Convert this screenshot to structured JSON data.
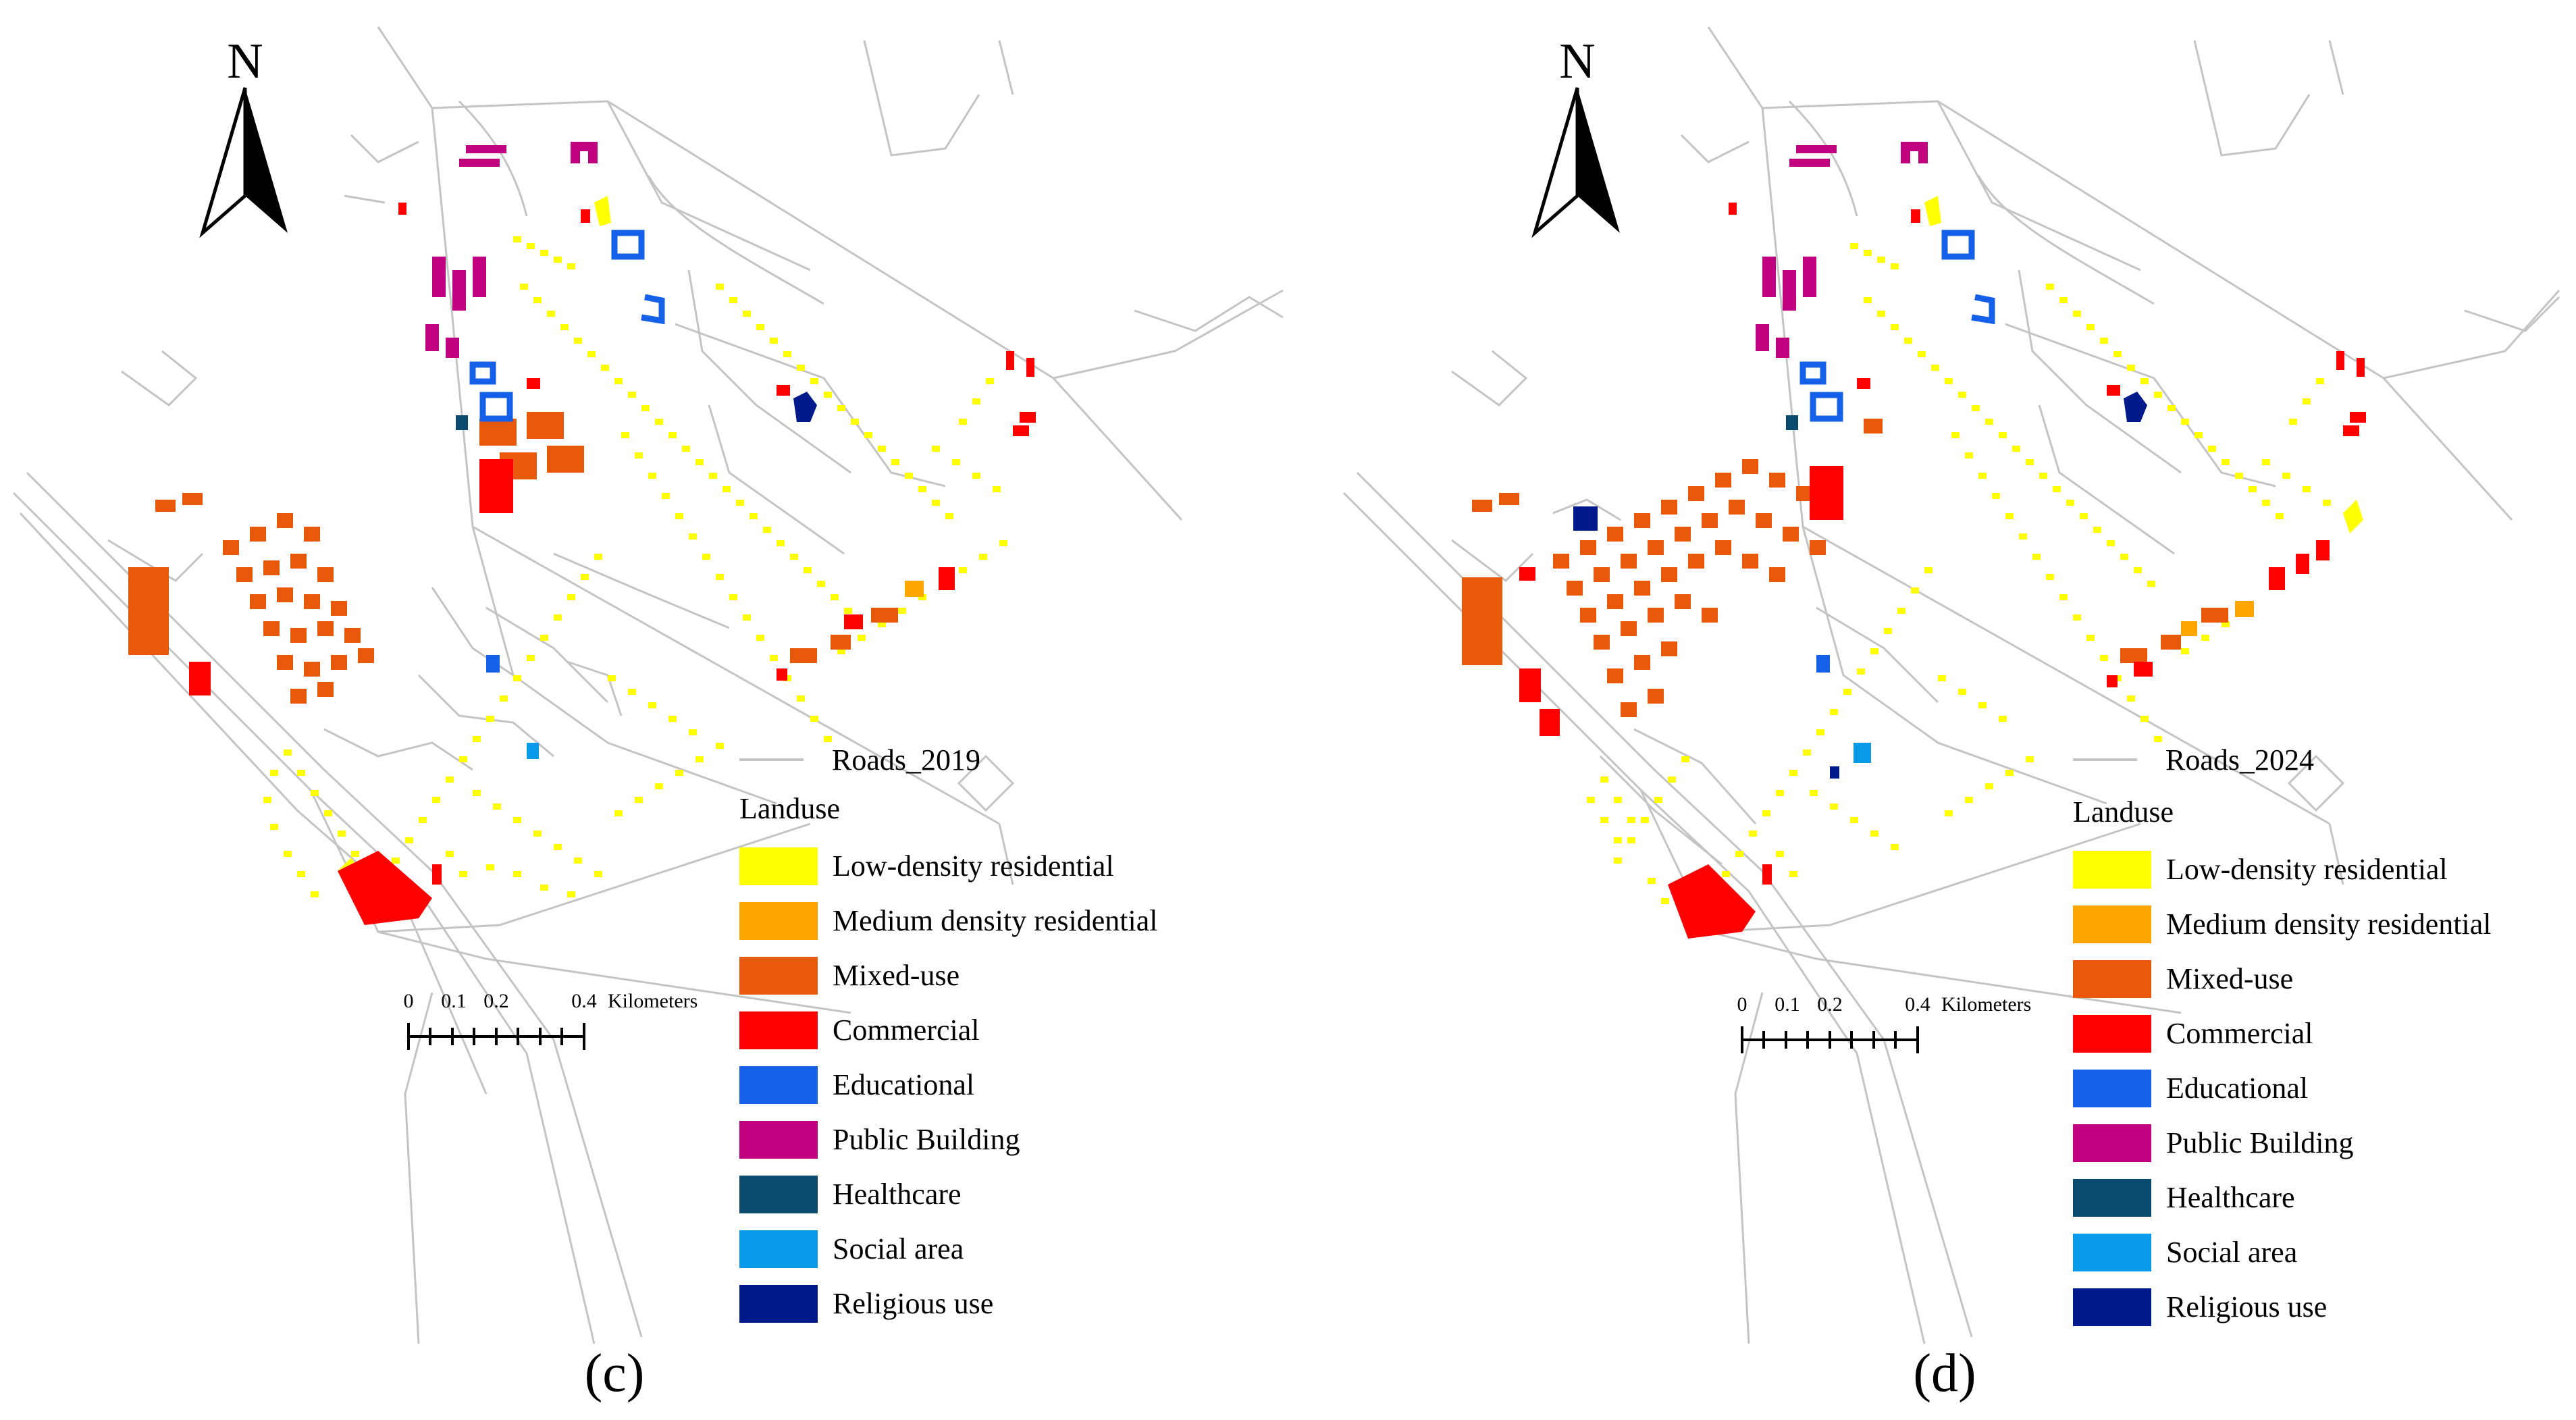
{
  "panels": [
    {
      "id": "c",
      "label": "(c)",
      "north": "N",
      "roads_legend": "Roads_2019",
      "scale": {
        "ticks": [
          "0",
          "0.1",
          "0.2",
          "0.4"
        ],
        "unit": "Kilometers"
      },
      "legend_title": "Landuse",
      "legend": [
        {
          "label": "Low-density residential",
          "color": "#ffff00"
        },
        {
          "label": "Medium density residential",
          "color": "#ffa500"
        },
        {
          "label": "Mixed-use",
          "color": "#e8590c"
        },
        {
          "label": "Commercial",
          "color": "#ff0000"
        },
        {
          "label": "Educational",
          "color": "#1560e8"
        },
        {
          "label": "Public Building",
          "color": "#c0007f"
        },
        {
          "label": "Healthcare",
          "color": "#0a4a6e"
        },
        {
          "label": "Social area",
          "color": "#0a9aea"
        },
        {
          "label": "Religious use",
          "color": "#001a8c"
        }
      ]
    },
    {
      "id": "d",
      "label": "(d)",
      "north": "N",
      "roads_legend": "Roads_2024",
      "scale": {
        "ticks": [
          "0",
          "0.1",
          "0.2",
          "0.4"
        ],
        "unit": "Kilometers"
      },
      "legend_title": "Landuse",
      "legend": [
        {
          "label": "Low-density residential",
          "color": "#ffff00"
        },
        {
          "label": "Medium density residential",
          "color": "#ffa500"
        },
        {
          "label": "Mixed-use",
          "color": "#e8590c"
        },
        {
          "label": "Commercial",
          "color": "#ff0000"
        },
        {
          "label": "Educational",
          "color": "#1560e8"
        },
        {
          "label": "Public Building",
          "color": "#c0007f"
        },
        {
          "label": "Healthcare",
          "color": "#0a4a6e"
        },
        {
          "label": "Social area",
          "color": "#0a9aea"
        },
        {
          "label": "Religious use",
          "color": "#001a8c"
        }
      ]
    }
  ]
}
